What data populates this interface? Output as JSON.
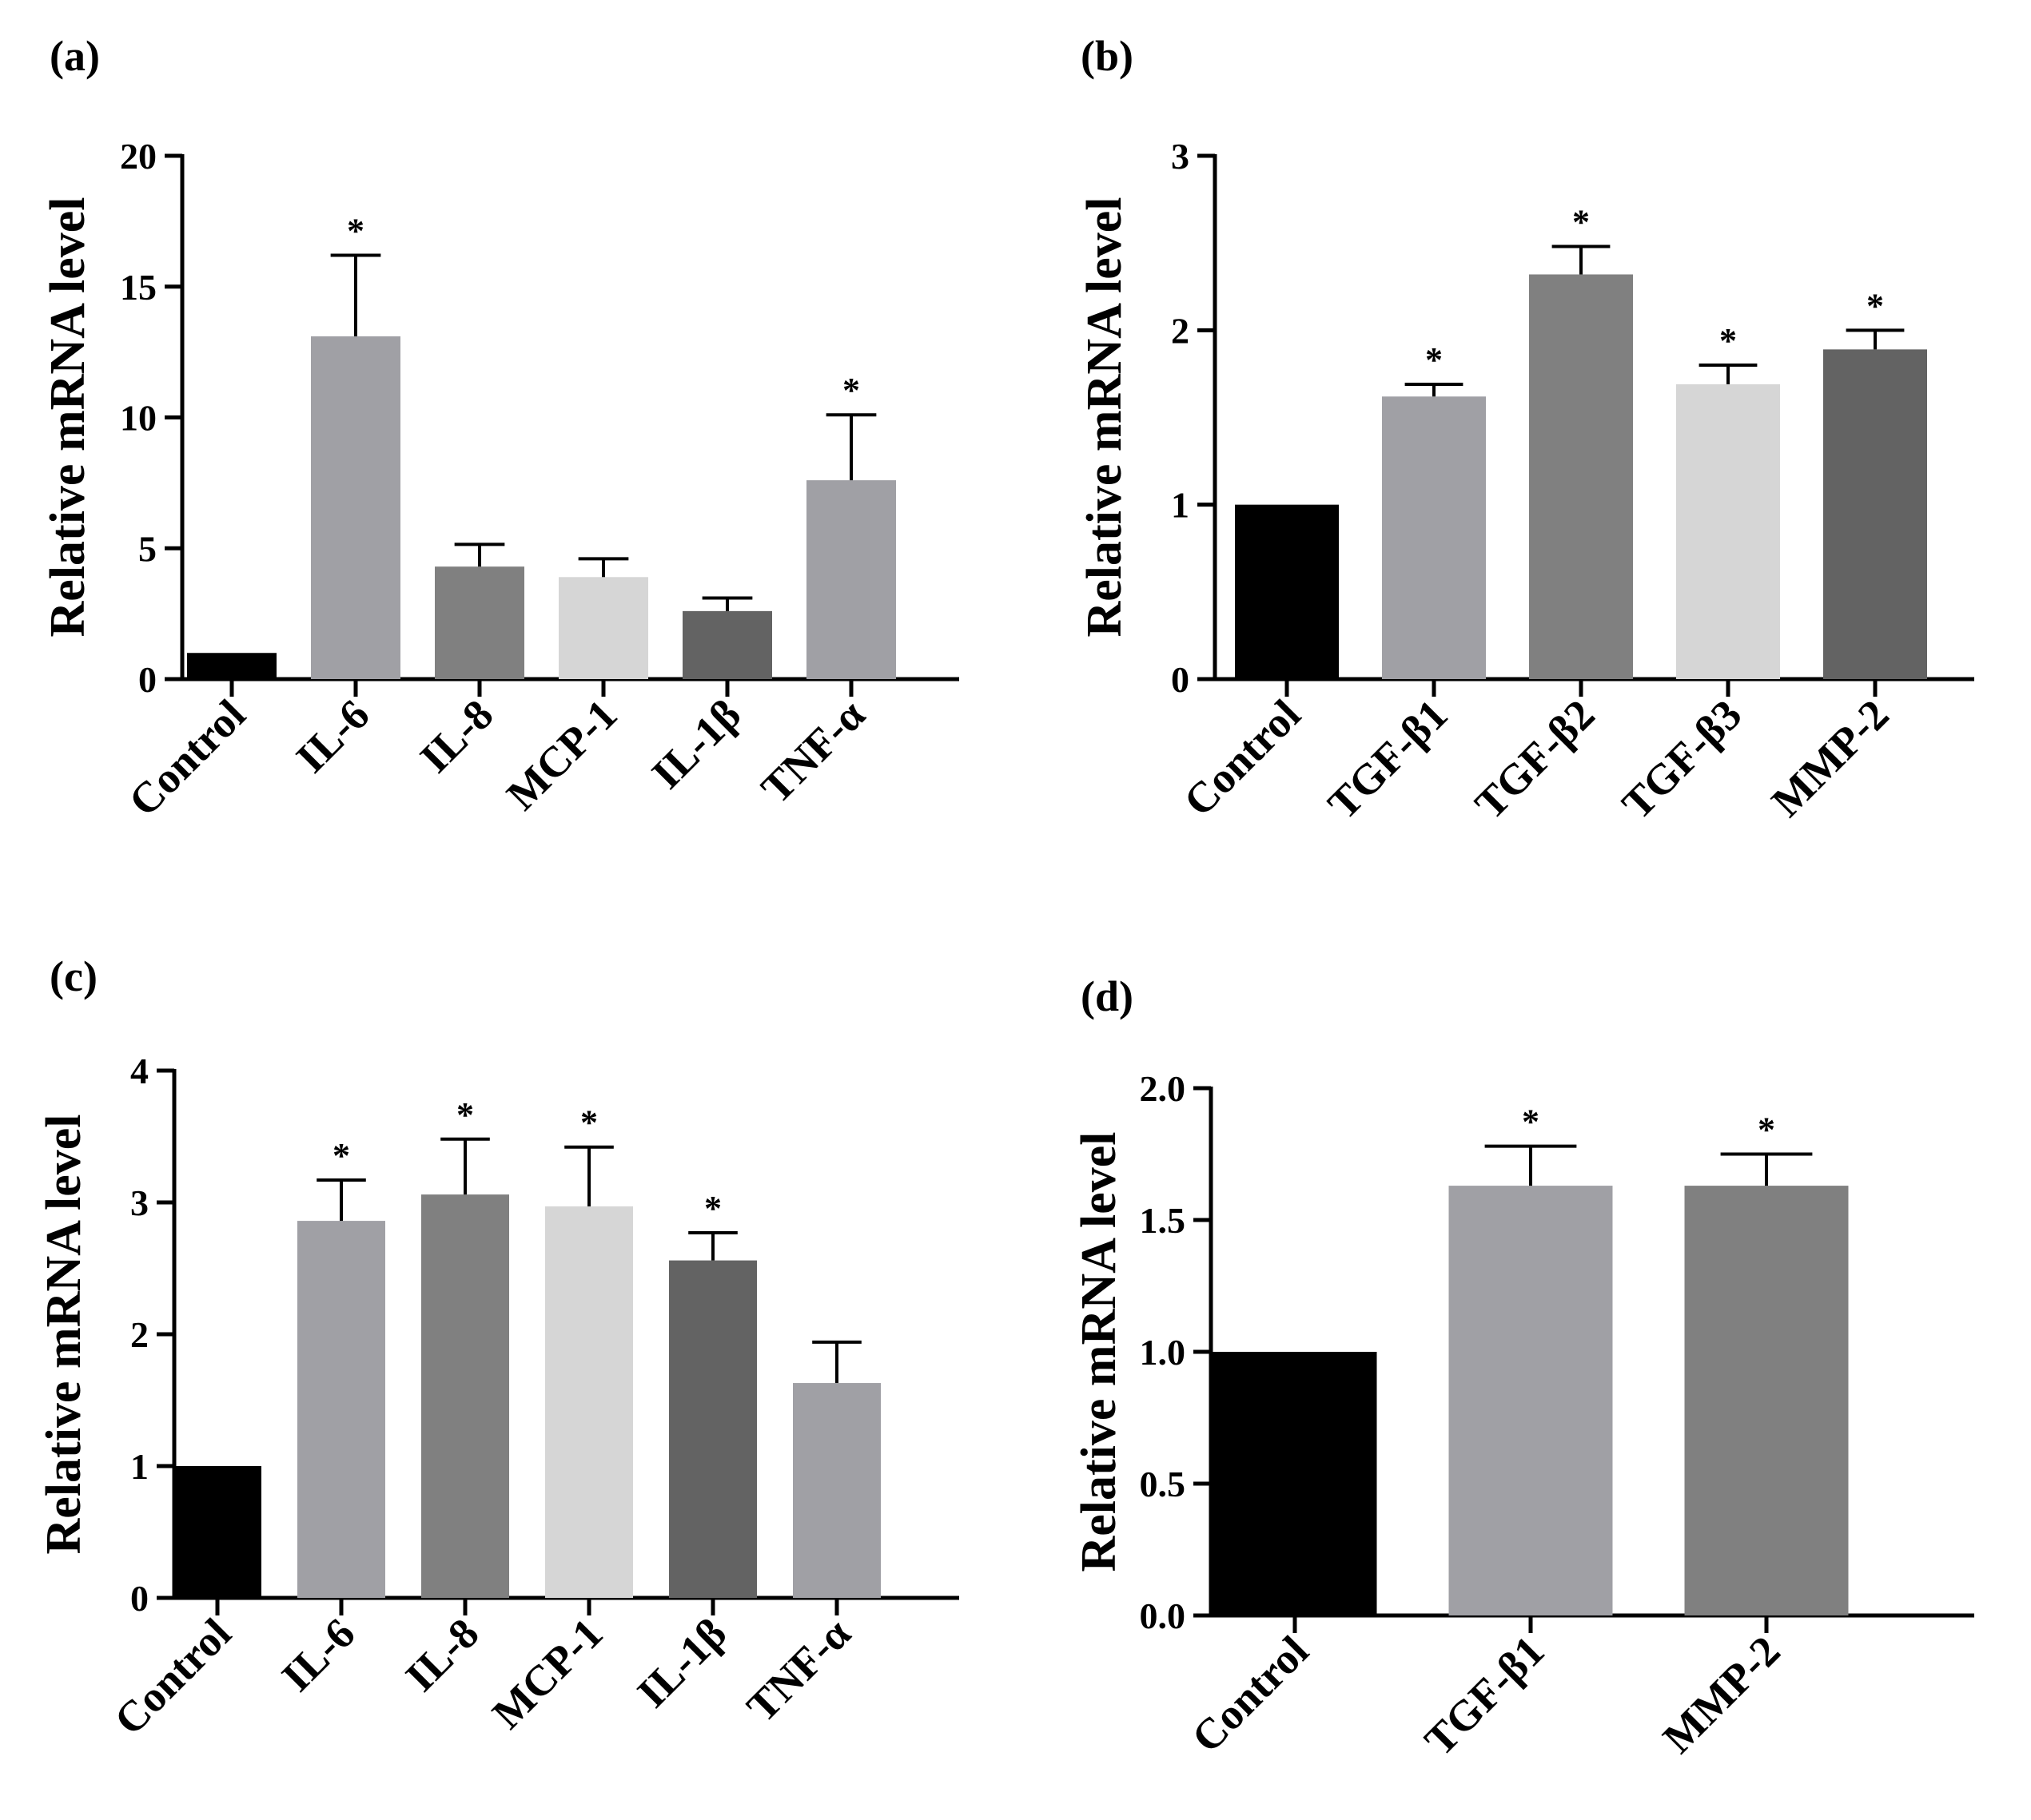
{
  "chart_data": [
    {
      "type": "bar",
      "panel_label": "(a)",
      "title": "",
      "xlabel": "",
      "ylabel": "Relative  mRNA level",
      "ylim": [
        0,
        20
      ],
      "yticks": [
        0,
        5,
        10,
        15,
        20
      ],
      "ytick_labels": [
        "0",
        "5",
        "10",
        "15",
        "20"
      ],
      "categories": [
        "Control",
        "IL-6",
        "IL-8",
        "MCP-1",
        "IL-1β",
        "TNF-α"
      ],
      "values": [
        1,
        13.1,
        4.3,
        3.9,
        2.6,
        7.6
      ],
      "errors": [
        0,
        3.1,
        0.85,
        0.7,
        0.5,
        2.5
      ],
      "significance": [
        "",
        "*",
        "",
        "",
        "",
        "*"
      ],
      "colors": [
        "#000000",
        "#a0a0a5",
        "#808080",
        "#d6d6d6",
        "#636363",
        "#a0a0a5"
      ]
    },
    {
      "type": "bar",
      "panel_label": "(b)",
      "title": "",
      "xlabel": "",
      "ylabel": "Relative  mRNA level",
      "ylim": [
        0,
        3
      ],
      "yticks": [
        0,
        1,
        2,
        3
      ],
      "ytick_labels": [
        "0",
        "1",
        "2",
        "3"
      ],
      "categories": [
        "Control",
        "TGF-β1",
        "TGF-β2",
        "TGF-β3",
        "MMP-2"
      ],
      "values": [
        1,
        1.62,
        2.32,
        1.69,
        1.89
      ],
      "errors": [
        0,
        0.07,
        0.16,
        0.11,
        0.11
      ],
      "significance": [
        "",
        "*",
        "*",
        "*",
        "*"
      ],
      "colors": [
        "#000000",
        "#a0a0a5",
        "#808080",
        "#d6d6d6",
        "#636363"
      ]
    },
    {
      "type": "bar",
      "panel_label": "(c)",
      "title": "",
      "xlabel": "",
      "ylabel": "Relative  mRNA level",
      "ylim": [
        0,
        4
      ],
      "yticks": [
        0,
        1,
        2,
        3,
        4
      ],
      "ytick_labels": [
        "0",
        "1",
        "2",
        "3",
        "4"
      ],
      "categories": [
        "Control",
        "IL-6",
        "IL-8",
        "MCP-1",
        "IL-1β",
        "TNF-α"
      ],
      "values": [
        1,
        2.86,
        3.06,
        2.97,
        2.56,
        1.63
      ],
      "errors": [
        0,
        0.31,
        0.42,
        0.45,
        0.21,
        0.31
      ],
      "significance": [
        "",
        "*",
        "*",
        "*",
        "*",
        ""
      ],
      "colors": [
        "#000000",
        "#a0a0a5",
        "#808080",
        "#d6d6d6",
        "#636363",
        "#a0a0a5"
      ]
    },
    {
      "type": "bar",
      "panel_label": "(d)",
      "title": "",
      "xlabel": "",
      "ylabel": "Relative  mRNA level",
      "ylim": [
        0,
        2
      ],
      "yticks": [
        0,
        0.5,
        1,
        1.5,
        2
      ],
      "ytick_labels": [
        "0.0",
        "0.5",
        "1.0",
        "1.5",
        "2.0"
      ],
      "categories": [
        "Control",
        "TGF-β1",
        "MMP-2"
      ],
      "values": [
        1,
        1.63,
        1.63
      ],
      "errors": [
        0,
        0.15,
        0.12
      ],
      "significance": [
        "",
        "*",
        "*"
      ],
      "colors": [
        "#000000",
        "#a0a0a5",
        "#808080"
      ]
    }
  ]
}
